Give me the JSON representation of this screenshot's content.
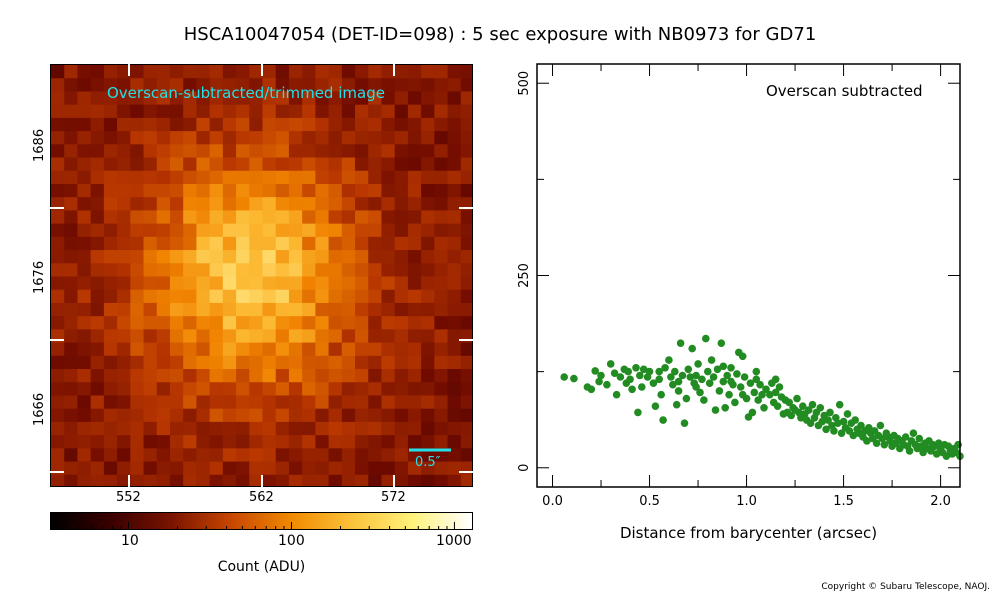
{
  "title": "HSCA10047054 (DET-ID=098) :  5 sec exposure with NB0973 for GD71",
  "copyright": "Copyright © Subaru Telescope, NAOJ.",
  "image_panel": {
    "overlay_text": "Overscan-subtracted/trimmed image",
    "scale_bar_label": "0.5″",
    "x_ticks": [
      "552",
      "562",
      "572"
    ],
    "y_ticks": [
      "1686",
      "1676",
      "1666"
    ]
  },
  "colorbar": {
    "label": "Count (ADU)",
    "tick_labels": [
      "10",
      "100",
      "1000"
    ],
    "colors": [
      "#000000",
      "#3a0000",
      "#7a1400",
      "#c84600",
      "#f08a00",
      "#fbc23a",
      "#fff27a",
      "#ffffff"
    ]
  },
  "chart_data": {
    "type": "scatter",
    "annotation": "Overscan subtracted",
    "xlabel": "Distance from barycenter (arcsec)",
    "ylabel": "",
    "xlim": [
      -0.08,
      2.1
    ],
    "ylim": [
      -25,
      525
    ],
    "x_ticks": [
      "0.0",
      "0.5",
      "1.0",
      "1.5",
      "2.0"
    ],
    "y_ticks": [
      "0",
      "250",
      "500"
    ],
    "marker_color": "#228b22",
    "series": [
      {
        "points": [
          [
            0.06,
            118
          ],
          [
            0.11,
            116
          ],
          [
            0.18,
            105
          ],
          [
            0.2,
            102
          ],
          [
            0.22,
            126
          ],
          [
            0.25,
            120
          ],
          [
            0.24,
            112
          ],
          [
            0.28,
            108
          ],
          [
            0.3,
            135
          ],
          [
            0.32,
            123
          ],
          [
            0.35,
            118
          ],
          [
            0.37,
            128
          ],
          [
            0.38,
            110
          ],
          [
            0.39,
            125
          ],
          [
            0.4,
            115
          ],
          [
            0.41,
            102
          ],
          [
            0.43,
            130
          ],
          [
            0.45,
            120
          ],
          [
            0.44,
            72
          ],
          [
            0.47,
            128
          ],
          [
            0.49,
            118
          ],
          [
            0.5,
            125
          ],
          [
            0.52,
            110
          ],
          [
            0.53,
            80
          ],
          [
            0.55,
            125
          ],
          [
            0.56,
            95
          ],
          [
            0.57,
            62
          ],
          [
            0.58,
            130
          ],
          [
            0.6,
            140
          ],
          [
            0.61,
            118
          ],
          [
            0.62,
            108
          ],
          [
            0.63,
            125
          ],
          [
            0.64,
            82
          ],
          [
            0.65,
            112
          ],
          [
            0.66,
            162
          ],
          [
            0.67,
            120
          ],
          [
            0.68,
            58
          ],
          [
            0.69,
            90
          ],
          [
            0.7,
            128
          ],
          [
            0.71,
            118
          ],
          [
            0.72,
            155
          ],
          [
            0.73,
            110
          ],
          [
            0.74,
            120
          ],
          [
            0.75,
            135
          ],
          [
            0.76,
            98
          ],
          [
            0.77,
            115
          ],
          [
            0.78,
            88
          ],
          [
            0.79,
            168
          ],
          [
            0.8,
            125
          ],
          [
            0.81,
            110
          ],
          [
            0.82,
            140
          ],
          [
            0.83,
            118
          ],
          [
            0.84,
            75
          ],
          [
            0.85,
            128
          ],
          [
            0.86,
            100
          ],
          [
            0.87,
            162
          ],
          [
            0.88,
            112
          ],
          [
            0.89,
            78
          ],
          [
            0.9,
            120
          ],
          [
            0.91,
            95
          ],
          [
            0.92,
            130
          ],
          [
            0.93,
            108
          ],
          [
            0.94,
            85
          ],
          [
            0.95,
            122
          ],
          [
            0.96,
            150
          ],
          [
            0.97,
            105
          ],
          [
            0.98,
            145
          ],
          [
            0.99,
            118
          ],
          [
            1.0,
            90
          ],
          [
            1.01,
            66
          ],
          [
            1.02,
            110
          ],
          [
            1.03,
            72
          ],
          [
            1.04,
            98
          ],
          [
            1.05,
            115
          ],
          [
            1.06,
            88
          ],
          [
            1.07,
            108
          ],
          [
            1.08,
            95
          ],
          [
            1.09,
            78
          ],
          [
            1.1,
            102
          ],
          [
            1.12,
            95
          ],
          [
            1.13,
            110
          ],
          [
            1.14,
            85
          ],
          [
            1.15,
            98
          ],
          [
            1.16,
            80
          ],
          [
            1.17,
            105
          ],
          [
            1.18,
            92
          ],
          [
            1.19,
            70
          ],
          [
            1.2,
            88
          ],
          [
            1.21,
            72
          ],
          [
            1.22,
            85
          ],
          [
            1.23,
            68
          ],
          [
            1.24,
            78
          ],
          [
            1.25,
            75
          ],
          [
            1.26,
            90
          ],
          [
            1.27,
            72
          ],
          [
            1.28,
            65
          ],
          [
            1.29,
            80
          ],
          [
            1.3,
            70
          ],
          [
            1.31,
            62
          ],
          [
            1.32,
            75
          ],
          [
            1.33,
            58
          ],
          [
            1.34,
            82
          ],
          [
            1.35,
            65
          ],
          [
            1.36,
            72
          ],
          [
            1.37,
            55
          ],
          [
            1.38,
            78
          ],
          [
            1.39,
            60
          ],
          [
            1.4,
            68
          ],
          [
            1.41,
            50
          ],
          [
            1.42,
            62
          ],
          [
            1.43,
            72
          ],
          [
            1.44,
            55
          ],
          [
            1.45,
            48
          ],
          [
            1.46,
            65
          ],
          [
            1.47,
            58
          ],
          [
            1.48,
            82
          ],
          [
            1.49,
            45
          ],
          [
            1.5,
            60
          ],
          [
            1.51,
            52
          ],
          [
            1.52,
            70
          ],
          [
            1.53,
            48
          ],
          [
            1.54,
            58
          ],
          [
            1.55,
            42
          ],
          [
            1.56,
            62
          ],
          [
            1.57,
            50
          ],
          [
            1.58,
            45
          ],
          [
            1.59,
            55
          ],
          [
            1.6,
            40
          ],
          [
            1.61,
            48
          ],
          [
            1.62,
            35
          ],
          [
            1.63,
            52
          ],
          [
            1.64,
            45
          ],
          [
            1.65,
            38
          ],
          [
            1.66,
            48
          ],
          [
            1.67,
            32
          ],
          [
            1.68,
            42
          ],
          [
            1.69,
            55
          ],
          [
            1.7,
            38
          ],
          [
            1.71,
            30
          ],
          [
            1.72,
            45
          ],
          [
            1.73,
            40
          ],
          [
            1.74,
            35
          ],
          [
            1.75,
            28
          ],
          [
            1.76,
            42
          ],
          [
            1.77,
            32
          ],
          [
            1.78,
            38
          ],
          [
            1.79,
            25
          ],
          [
            1.8,
            35
          ],
          [
            1.81,
            30
          ],
          [
            1.82,
            40
          ],
          [
            1.83,
            28
          ],
          [
            1.84,
            22
          ],
          [
            1.85,
            35
          ],
          [
            1.86,
            45
          ],
          [
            1.87,
            30
          ],
          [
            1.88,
            25
          ],
          [
            1.89,
            38
          ],
          [
            1.9,
            28
          ],
          [
            1.91,
            20
          ],
          [
            1.92,
            32
          ],
          [
            1.93,
            25
          ],
          [
            1.94,
            35
          ],
          [
            1.95,
            22
          ],
          [
            1.96,
            30
          ],
          [
            1.97,
            28
          ],
          [
            1.98,
            18
          ],
          [
            1.99,
            32
          ],
          [
            2.0,
            25
          ],
          [
            2.01,
            20
          ],
          [
            2.02,
            30
          ],
          [
            2.03,
            15
          ],
          [
            2.04,
            28
          ],
          [
            2.05,
            22
          ],
          [
            2.06,
            18
          ],
          [
            2.07,
            25
          ],
          [
            2.08,
            20
          ],
          [
            2.09,
            30
          ],
          [
            2.1,
            15
          ],
          [
            1.15,
            115
          ],
          [
            1.05,
            125
          ],
          [
            0.98,
            95
          ],
          [
            0.92,
            112
          ],
          [
            0.88,
            132
          ],
          [
            0.74,
            105
          ],
          [
            0.65,
            100
          ],
          [
            0.55,
            115
          ],
          [
            0.46,
            105
          ],
          [
            0.33,
            95
          ]
        ]
      }
    ]
  }
}
